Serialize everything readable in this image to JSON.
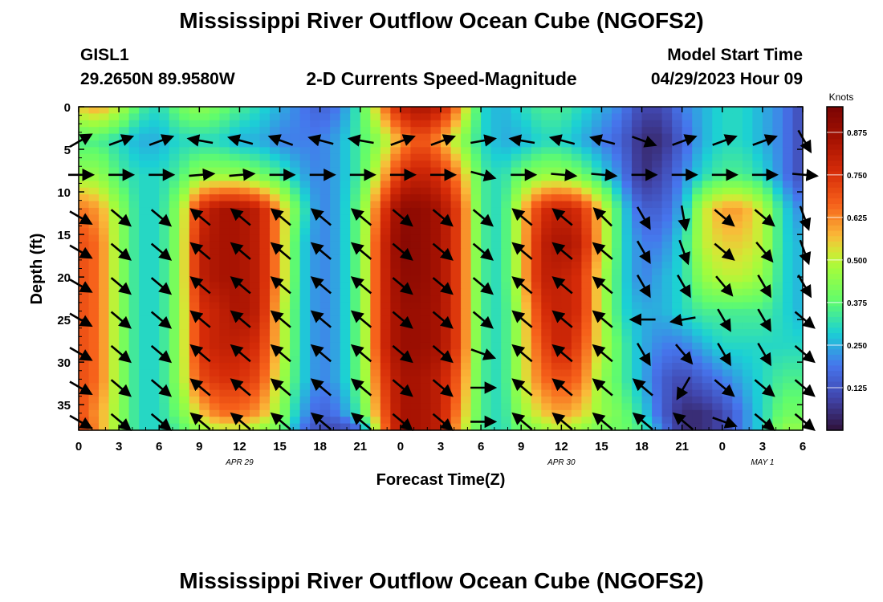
{
  "header": {
    "title": "Mississippi River Outflow Ocean Cube (NGOFS2)",
    "station": "GISL1",
    "coords": "29.2650N  89.9580W",
    "plot_title": "2-D Currents Speed-Magnitude",
    "model_start_label": "Model Start Time",
    "model_start_value": "04/29/2023 Hour 09"
  },
  "footer": {
    "title": "Mississippi River Outflow Ocean Cube (NGOFS2)"
  },
  "chart_data": {
    "type": "heatmap",
    "title": "2-D Currents Speed-Magnitude",
    "xlabel": "Forecast Time(Z)",
    "ylabel": "Depth (ft)",
    "x_range_hours": [
      0,
      54
    ],
    "xlim": [
      0,
      54
    ],
    "ylim": [
      38,
      0
    ],
    "x_tick_labels": [
      "0",
      "3",
      "6",
      "9",
      "12",
      "15",
      "18",
      "21",
      "0",
      "3",
      "6",
      "9",
      "12",
      "15",
      "18",
      "21",
      "0",
      "3",
      "6"
    ],
    "date_labels": [
      {
        "text": "APR 29",
        "hour": 12
      },
      {
        "text": "APR 30",
        "hour": 36
      },
      {
        "text": "MAY 1",
        "hour": 51
      }
    ],
    "y_ticks": [
      0,
      5,
      10,
      15,
      20,
      25,
      30,
      35
    ],
    "colorbar": {
      "label": "Knots",
      "min": 0,
      "max": 0.95,
      "tick_labels": [
        "0.125",
        "0.250",
        "0.375",
        "0.500",
        "0.625",
        "0.750",
        "0.875"
      ],
      "tick_values": [
        0.125,
        0.25,
        0.375,
        0.5,
        0.625,
        0.75,
        0.875
      ]
    },
    "speed_samples": {
      "hours": [
        0,
        1.5,
        3,
        4.5,
        6,
        7.5,
        9,
        10.5,
        12,
        13.5,
        15,
        16.5,
        18,
        19.5,
        21,
        22.5,
        24,
        25.5,
        27,
        28.5,
        30,
        31.5,
        33,
        34.5,
        36,
        37.5,
        39,
        40.5,
        42,
        43.5,
        45,
        46.5,
        48,
        49.5,
        51,
        52.5,
        54
      ],
      "depths": [
        0,
        4,
        8,
        12,
        16,
        20,
        24,
        28,
        32,
        36,
        38
      ],
      "rows": [
        [
          0.55,
          0.6,
          0.5,
          0.35,
          0.3,
          0.4,
          0.45,
          0.4,
          0.35,
          0.3,
          0.25,
          0.2,
          0.15,
          0.2,
          0.35,
          0.6,
          0.8,
          0.85,
          0.8,
          0.6,
          0.3,
          0.25,
          0.3,
          0.35,
          0.35,
          0.3,
          0.25,
          0.2,
          0.1,
          0.1,
          0.2,
          0.25,
          0.3,
          0.3,
          0.25,
          0.2,
          0.1
        ],
        [
          0.35,
          0.35,
          0.3,
          0.25,
          0.25,
          0.3,
          0.3,
          0.3,
          0.25,
          0.25,
          0.2,
          0.2,
          0.2,
          0.25,
          0.35,
          0.45,
          0.6,
          0.7,
          0.6,
          0.45,
          0.3,
          0.25,
          0.25,
          0.3,
          0.3,
          0.25,
          0.2,
          0.15,
          0.05,
          0.05,
          0.15,
          0.25,
          0.3,
          0.3,
          0.25,
          0.2,
          0.1
        ],
        [
          0.45,
          0.45,
          0.35,
          0.3,
          0.3,
          0.35,
          0.45,
          0.45,
          0.45,
          0.4,
          0.35,
          0.25,
          0.2,
          0.25,
          0.35,
          0.55,
          0.75,
          0.8,
          0.75,
          0.6,
          0.35,
          0.3,
          0.4,
          0.45,
          0.45,
          0.4,
          0.3,
          0.2,
          0.05,
          0.1,
          0.2,
          0.3,
          0.35,
          0.35,
          0.3,
          0.2,
          0.1
        ],
        [
          0.65,
          0.6,
          0.45,
          0.3,
          0.3,
          0.45,
          0.75,
          0.85,
          0.85,
          0.8,
          0.6,
          0.35,
          0.2,
          0.25,
          0.4,
          0.7,
          0.9,
          0.9,
          0.85,
          0.7,
          0.35,
          0.3,
          0.55,
          0.75,
          0.8,
          0.75,
          0.55,
          0.3,
          0.15,
          0.15,
          0.25,
          0.5,
          0.6,
          0.6,
          0.5,
          0.3,
          0.2
        ],
        [
          0.7,
          0.65,
          0.45,
          0.3,
          0.3,
          0.45,
          0.8,
          0.85,
          0.85,
          0.8,
          0.6,
          0.3,
          0.2,
          0.25,
          0.4,
          0.75,
          0.92,
          0.9,
          0.85,
          0.7,
          0.35,
          0.3,
          0.55,
          0.8,
          0.85,
          0.8,
          0.55,
          0.3,
          0.2,
          0.2,
          0.3,
          0.5,
          0.55,
          0.55,
          0.5,
          0.3,
          0.25
        ],
        [
          0.7,
          0.65,
          0.45,
          0.3,
          0.3,
          0.45,
          0.8,
          0.85,
          0.85,
          0.8,
          0.6,
          0.3,
          0.2,
          0.25,
          0.4,
          0.75,
          0.9,
          0.9,
          0.85,
          0.7,
          0.35,
          0.3,
          0.55,
          0.8,
          0.8,
          0.75,
          0.5,
          0.3,
          0.2,
          0.25,
          0.3,
          0.45,
          0.5,
          0.5,
          0.45,
          0.3,
          0.25
        ],
        [
          0.7,
          0.65,
          0.45,
          0.3,
          0.3,
          0.45,
          0.75,
          0.8,
          0.85,
          0.8,
          0.55,
          0.3,
          0.2,
          0.25,
          0.4,
          0.75,
          0.88,
          0.88,
          0.85,
          0.7,
          0.35,
          0.3,
          0.5,
          0.75,
          0.8,
          0.75,
          0.5,
          0.3,
          0.25,
          0.25,
          0.3,
          0.35,
          0.35,
          0.35,
          0.35,
          0.3,
          0.25
        ],
        [
          0.7,
          0.65,
          0.45,
          0.3,
          0.3,
          0.45,
          0.75,
          0.8,
          0.8,
          0.75,
          0.55,
          0.3,
          0.2,
          0.25,
          0.4,
          0.75,
          0.88,
          0.88,
          0.85,
          0.7,
          0.35,
          0.3,
          0.5,
          0.7,
          0.8,
          0.7,
          0.5,
          0.35,
          0.25,
          0.2,
          0.2,
          0.25,
          0.3,
          0.3,
          0.3,
          0.3,
          0.3
        ],
        [
          0.7,
          0.65,
          0.45,
          0.3,
          0.3,
          0.45,
          0.7,
          0.75,
          0.75,
          0.7,
          0.5,
          0.3,
          0.2,
          0.25,
          0.4,
          0.7,
          0.85,
          0.85,
          0.8,
          0.65,
          0.35,
          0.3,
          0.5,
          0.65,
          0.7,
          0.65,
          0.45,
          0.35,
          0.25,
          0.15,
          0.1,
          0.15,
          0.2,
          0.25,
          0.3,
          0.35,
          0.35
        ],
        [
          0.7,
          0.6,
          0.45,
          0.3,
          0.3,
          0.4,
          0.55,
          0.65,
          0.65,
          0.6,
          0.45,
          0.25,
          0.15,
          0.2,
          0.35,
          0.65,
          0.85,
          0.85,
          0.8,
          0.6,
          0.35,
          0.3,
          0.45,
          0.55,
          0.6,
          0.55,
          0.45,
          0.4,
          0.3,
          0.15,
          0.05,
          0.05,
          0.1,
          0.2,
          0.3,
          0.4,
          0.4
        ],
        [
          0.75,
          0.6,
          0.45,
          0.3,
          0.3,
          0.35,
          0.45,
          0.5,
          0.5,
          0.45,
          0.4,
          0.2,
          0.1,
          0.1,
          0.15,
          0.6,
          0.85,
          0.85,
          0.8,
          0.55,
          0.35,
          0.3,
          0.4,
          0.45,
          0.5,
          0.45,
          0.4,
          0.4,
          0.35,
          0.2,
          0.05,
          0.05,
          0.1,
          0.2,
          0.3,
          0.45,
          0.45
        ]
      ]
    },
    "vector_hours": [
      0,
      3,
      6,
      9,
      12,
      15,
      18,
      21,
      24,
      27,
      30,
      33,
      36,
      39,
      42,
      45,
      48,
      51,
      54
    ],
    "vector_depths": [
      4,
      8,
      13,
      17,
      21,
      25,
      29,
      33,
      37
    ],
    "vector_directions": {
      "rows": [
        [
          30,
          20,
          20,
          170,
          165,
          160,
          165,
          170,
          20,
          20,
          10,
          170,
          165,
          165,
          340,
          20,
          20,
          20,
          300
        ],
        [
          0,
          0,
          0,
          5,
          5,
          0,
          0,
          0,
          0,
          0,
          345,
          0,
          355,
          355,
          0,
          0,
          0,
          0,
          355
        ],
        [
          330,
          320,
          320,
          140,
          140,
          140,
          140,
          140,
          320,
          320,
          320,
          140,
          140,
          135,
          300,
          280,
          320,
          320,
          290
        ],
        [
          330,
          320,
          320,
          140,
          140,
          140,
          140,
          140,
          320,
          320,
          320,
          140,
          140,
          140,
          300,
          290,
          320,
          310,
          290
        ],
        [
          330,
          320,
          320,
          140,
          140,
          140,
          140,
          140,
          320,
          320,
          320,
          140,
          140,
          140,
          300,
          300,
          310,
          300,
          300
        ],
        [
          330,
          320,
          320,
          140,
          140,
          140,
          140,
          140,
          320,
          320,
          320,
          140,
          140,
          140,
          180,
          190,
          300,
          300,
          320
        ],
        [
          330,
          320,
          320,
          140,
          140,
          140,
          140,
          140,
          320,
          320,
          340,
          140,
          140,
          140,
          300,
          310,
          300,
          300,
          320
        ],
        [
          330,
          320,
          320,
          140,
          140,
          140,
          140,
          140,
          320,
          320,
          360,
          140,
          140,
          140,
          140,
          240,
          320,
          320,
          320
        ],
        [
          330,
          320,
          320,
          140,
          140,
          140,
          140,
          140,
          320,
          320,
          360,
          140,
          140,
          140,
          140,
          140,
          340,
          320,
          320
        ]
      ]
    }
  }
}
